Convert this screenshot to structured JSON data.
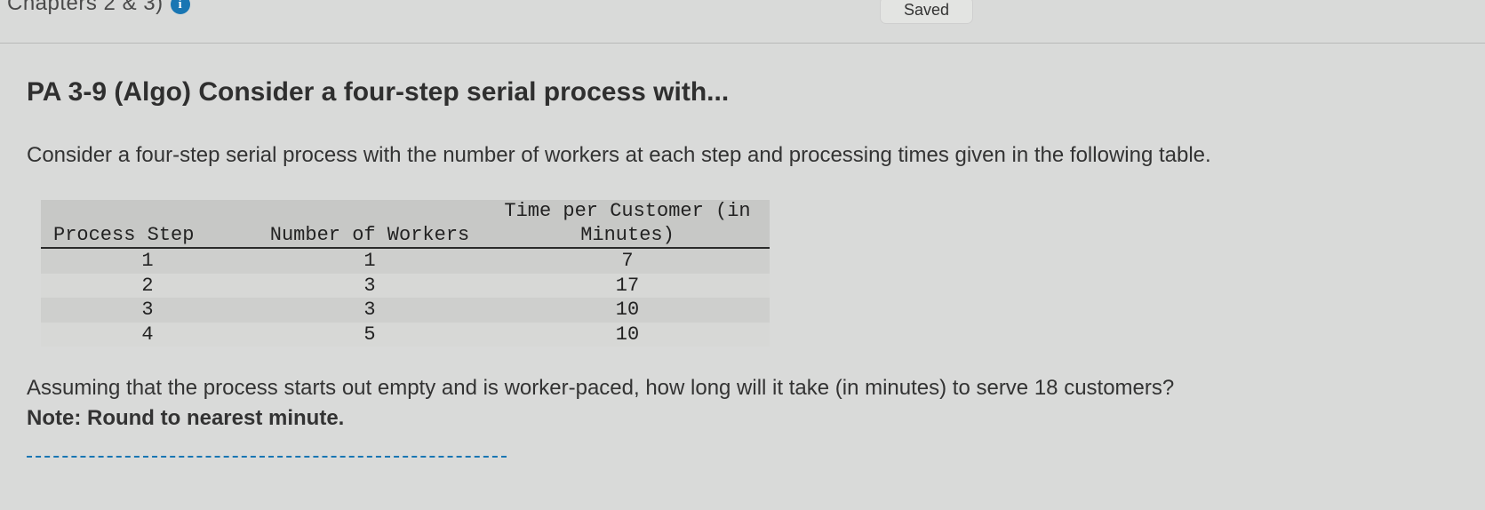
{
  "header": {
    "chapter_label": "Chapters 2 & 3)",
    "info_badge": "i",
    "saved_label": "Saved"
  },
  "question": {
    "title": "PA 3-9 (Algo) Consider a four-step serial process with...",
    "description": "Consider a four-step serial process with the number of workers at each step and processing times given in the following table.",
    "prompt_line1": "Assuming that the process starts out empty and is worker-paced, how long will it take (in minutes) to serve 18 customers?",
    "prompt_note": "Note: Round to nearest minute."
  },
  "table": {
    "columns": [
      "Process Step",
      "Number of Workers",
      "Time per Customer (in Minutes)"
    ],
    "col2_line1": "Time per Customer (in",
    "col2_line2": "Minutes)",
    "rows": [
      {
        "step": "1",
        "workers": "1",
        "time": "7"
      },
      {
        "step": "2",
        "workers": "3",
        "time": "17"
      },
      {
        "step": "3",
        "workers": "3",
        "time": "10"
      },
      {
        "step": "4",
        "workers": "5",
        "time": "10"
      }
    ],
    "header_bg": "#c7c8c6",
    "row_odd_bg": "#cecfcd",
    "row_even_bg": "#d7d8d6",
    "underline_color": "#2a2a2a"
  },
  "colors": {
    "page_bg": "#d9dad9",
    "badge_bg": "#1976b3",
    "text": "#3a3a3a",
    "dotted": "#1976b3"
  }
}
